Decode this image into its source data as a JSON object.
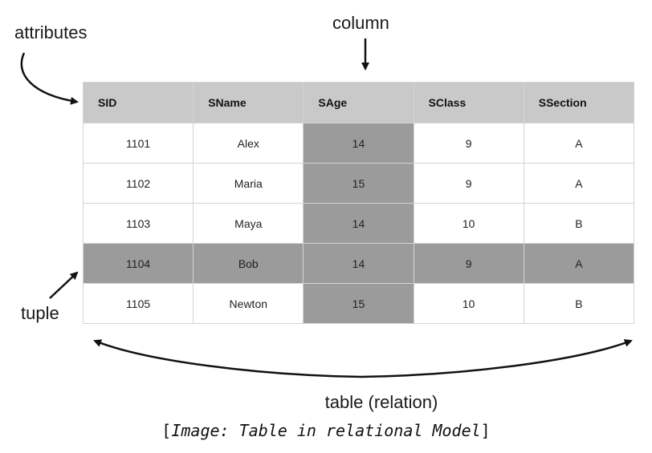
{
  "labels": {
    "attributes": "attributes",
    "column": "column",
    "tuple": "tuple",
    "table": "table (relation)"
  },
  "caption": {
    "open": "[",
    "image_word": "Image: Table in relational Model",
    "close": "]"
  },
  "table": {
    "headers": [
      "SID",
      "SName",
      "SAge",
      "SClass",
      "SSection"
    ],
    "rows": [
      [
        "1101",
        "Alex",
        "14",
        "9",
        "A"
      ],
      [
        "1102",
        "Maria",
        "15",
        "9",
        "A"
      ],
      [
        "1103",
        "Maya",
        "14",
        "10",
        "B"
      ],
      [
        "1104",
        "Bob",
        "14",
        "9",
        "A"
      ],
      [
        "1105",
        "Newton",
        "15",
        "10",
        "B"
      ]
    ],
    "highlighted_column": "SAge",
    "highlighted_row_sid": "1104"
  },
  "colors": {
    "header_bg": "#c9c9c9",
    "highlight_bg": "#9b9b9b",
    "cell_bg": "#ffffff",
    "grid": "#d4d4d4"
  }
}
